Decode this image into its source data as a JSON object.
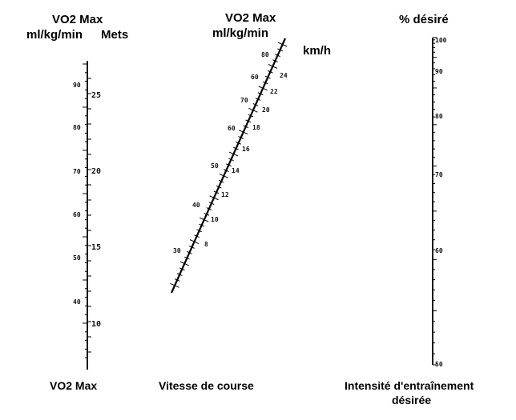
{
  "header": {
    "left_title": "VO2 Max",
    "left_unit": "ml/kg/min",
    "mets_label": "Mets",
    "center_title": "VO2 Max",
    "center_unit": "ml/kg/min",
    "speed_unit": "km/h",
    "right_title": "% désiré"
  },
  "footer": {
    "left": "VO2 Max",
    "center": "Vitesse de course",
    "right_line1": "Intensité d'entraînement",
    "right_line2": "désirée"
  },
  "scales": {
    "vo2_left_labels": [
      "90",
      "80",
      "70",
      "60",
      "50",
      "40"
    ],
    "mets_labels": [
      "25",
      "20",
      "15",
      "10"
    ],
    "vo2_diag_labels": [
      "80",
      "60",
      "70",
      "60",
      "50",
      "40",
      "30"
    ],
    "speed_labels": [
      "24",
      "22",
      "20",
      "18",
      "16",
      "14",
      "12",
      "10",
      "8"
    ],
    "percent_labels": [
      "100",
      "90",
      "80",
      "70",
      "60",
      "50"
    ]
  }
}
